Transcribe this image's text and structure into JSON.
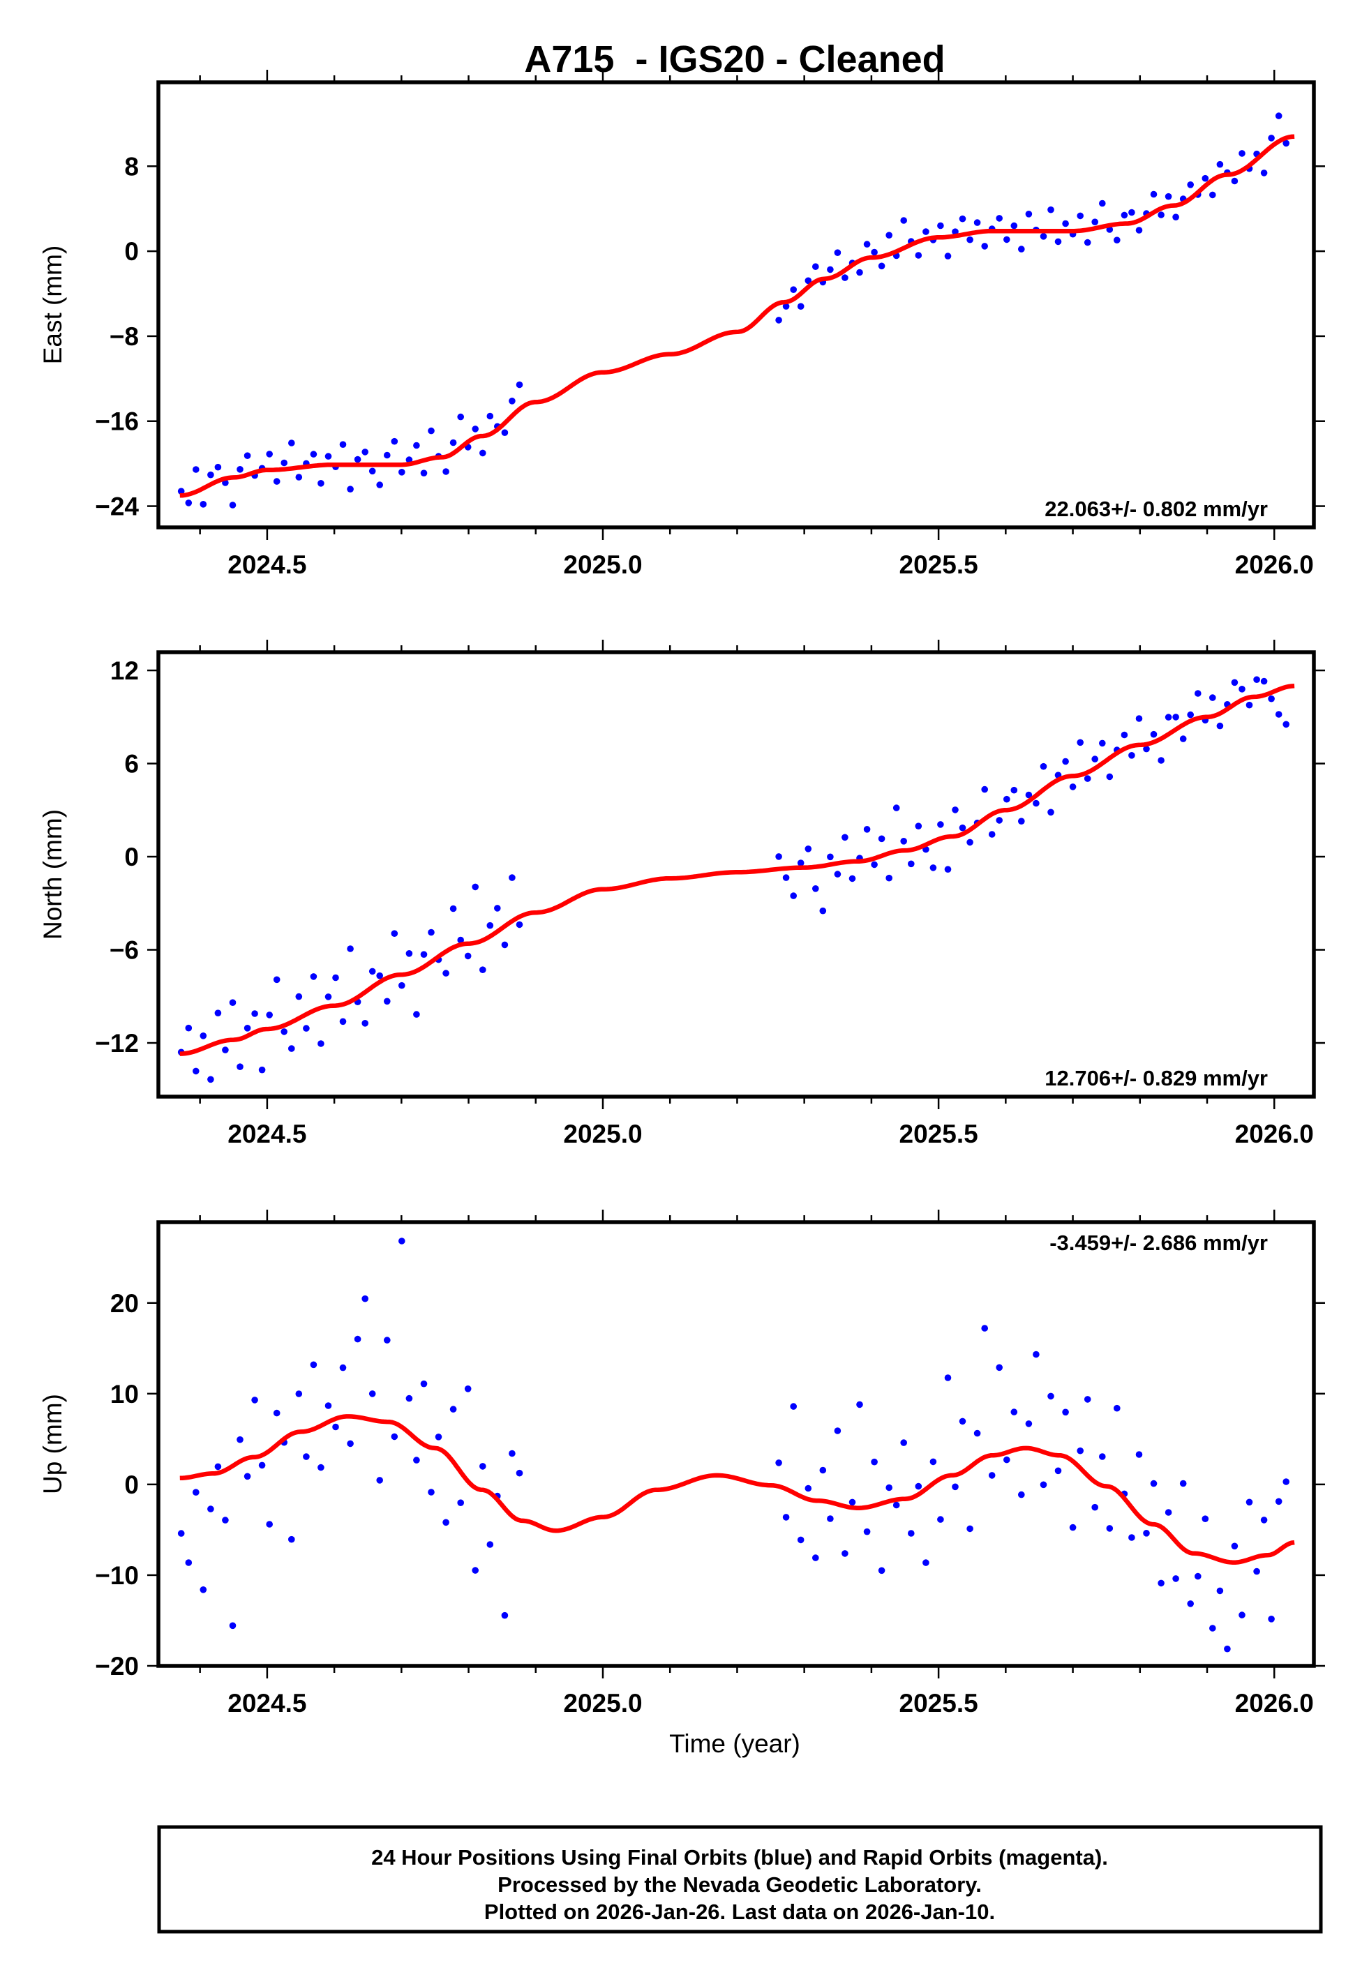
{
  "chart_data": {
    "type": "scatter",
    "title": "A715  - IGS20 - Cleaned",
    "xlabel": "Time (year)",
    "xlim": [
      2024.338,
      2026.059
    ],
    "x_ticks": [
      2024.5,
      2025.0,
      2025.5,
      2026.0
    ],
    "x_tick_labels": [
      "2024.5",
      "2025.0",
      "2025.5",
      "2026.0"
    ],
    "x_minor_step": 0.1,
    "grid": false,
    "point_color": "#0000ff",
    "fit_color": "#ff0000",
    "sampling": {
      "description": "Representative positions every 4 days; value = fit(t) + residual",
      "segments": [
        {
          "start": 2024.372,
          "step_days": 4
        },
        {
          "start": 2025.262,
          "step_days": 4
        }
      ]
    },
    "panels": [
      {
        "id": "east",
        "ylabel": "East (mm)",
        "ylim": [
          -26.0,
          15.9
        ],
        "y_ticks": [
          -24,
          -16,
          -8,
          0,
          8
        ],
        "y_tick_labels": [
          "−24",
          "−16",
          "−8",
          "0",
          "8"
        ],
        "rate_text": "22.063+/- 0.802 mm/yr",
        "rate_position": "bottom-right",
        "fit": [
          [
            2024.37,
            -23.0
          ],
          [
            2024.45,
            -21.3
          ],
          [
            2024.5,
            -20.6
          ],
          [
            2024.6,
            -20.1
          ],
          [
            2024.7,
            -20.1
          ],
          [
            2024.76,
            -19.4
          ],
          [
            2024.82,
            -17.4
          ],
          [
            2024.9,
            -14.2
          ],
          [
            2025.0,
            -11.4
          ],
          [
            2025.1,
            -9.7
          ],
          [
            2025.2,
            -7.6
          ],
          [
            2025.27,
            -4.8
          ],
          [
            2025.33,
            -2.6
          ],
          [
            2025.4,
            -0.6
          ],
          [
            2025.5,
            1.3
          ],
          [
            2025.58,
            1.9
          ],
          [
            2025.7,
            1.9
          ],
          [
            2025.78,
            2.6
          ],
          [
            2025.85,
            4.3
          ],
          [
            2025.93,
            7.2
          ],
          [
            2026.03,
            10.8
          ]
        ],
        "residuals": [
          [
            0.4,
            -0.8,
            2.1,
            -1.5,
            0.9,
            1.3,
            -0.4,
            -2.6,
            0.7,
            1.8,
            -0.3,
            0.2,
            1.5,
            -1.1,
            0.6,
            2.4,
            -0.9,
            0.3,
            1.1,
            -1.7,
            0.8,
            -0.2,
            1.9,
            -2.3,
            0.5,
            1.2,
            -0.6,
            -1.9,
            0.9,
            2.2,
            -0.7,
            0.4,
            1.6,
            -1.2,
            2.6,
            0.1,
            -1.4,
            1.0,
            2.9,
            -0.5,
            0.8,
            -1.6,
            1.7,
            0.3,
            -0.9,
            1.4,
            2.3
          ],
          [
            -1.6,
            -0.4,
            0.9,
            -1.2,
            0.6,
            1.4,
            -0.3,
            0.8,
            2.1,
            -0.7,
            0.2,
            -1.1,
            1.3,
            0.5,
            -0.9,
            1.8,
            -0.4,
            2.6,
            0.3,
            -1.3,
            0.7,
            -0.2,
            1.1,
            -1.8,
            0.4,
            1.5,
            -0.6,
            0.9,
            -1.4,
            0.2,
            1.2,
            -0.8,
            0.5,
            -1.7,
            1.6,
            0.1,
            -0.5,
            2.0,
            -1.0,
            0.7,
            -0.3,
            1.4,
            -1.2,
            0.6,
            2.2,
            -0.4,
            -1.5,
            0.8,
            1.0,
            -0.9,
            0.3,
            1.7,
            -0.6,
            0.9,
            -1.1,
            0.4,
            1.3,
            -0.2,
            0.7,
            -1.4,
            1.1,
            0.2,
            -0.7,
            1.6,
            -0.3,
            0.5,
            -1.9,
            0.8,
            2.4,
            -0.5
          ]
        ]
      },
      {
        "id": "north",
        "ylabel": "North (mm)",
        "ylim": [
          -15.46,
          13.17
        ],
        "y_ticks": [
          -12,
          -6,
          0,
          6,
          12
        ],
        "y_tick_labels": [
          "−12",
          "−6",
          "0",
          "6",
          "12"
        ],
        "rate_text": "12.706+/- 0.829 mm/yr",
        "rate_position": "bottom-right",
        "fit": [
          [
            2024.37,
            -12.7
          ],
          [
            2024.45,
            -11.8
          ],
          [
            2024.5,
            -11.1
          ],
          [
            2024.6,
            -9.6
          ],
          [
            2024.7,
            -7.6
          ],
          [
            2024.8,
            -5.6
          ],
          [
            2024.9,
            -3.6
          ],
          [
            2025.0,
            -2.1
          ],
          [
            2025.1,
            -1.4
          ],
          [
            2025.2,
            -1.0
          ],
          [
            2025.3,
            -0.7
          ],
          [
            2025.38,
            -0.3
          ],
          [
            2025.45,
            0.4
          ],
          [
            2025.52,
            1.3
          ],
          [
            2025.6,
            3.0
          ],
          [
            2025.7,
            5.2
          ],
          [
            2025.8,
            7.2
          ],
          [
            2025.9,
            9.0
          ],
          [
            2025.97,
            10.3
          ],
          [
            2026.03,
            11.0
          ]
        ],
        "residuals": [
          [
            0.1,
            1.6,
            -1.3,
            0.8,
            -2.2,
            1.9,
            -0.6,
            2.4,
            -1.8,
            0.5,
            1.2,
            -2.6,
            0.9,
            3.1,
            -0.4,
            -1.7,
            1.4,
            -0.9,
            2.2,
            -2.3,
            0.6,
            1.8,
            -1.1,
            3.4,
            -0.3,
            -2.0,
            1.0,
            0.4,
            -1.5,
            2.7,
            -0.7,
            1.3,
            -2.8,
            0.8,
            1.9,
            -0.2,
            -1.4,
            2.5,
            0.3,
            -0.8,
            3.6,
            -1.9,
            0.7,
            1.5,
            -1.2,
            2.8,
            -0.5
          ],
          [
            0.8,
            -0.6,
            -1.8,
            0.3,
            1.2,
            -1.4,
            -2.9,
            0.5,
            -0.7,
            1.6,
            -1.1,
            0.2,
            2.0,
            -0.4,
            1.1,
            -1.6,
            2.8,
            0.6,
            -0.9,
            1.4,
            -0.3,
            -1.7,
            0.9,
            -2.1,
            1.7,
            0.4,
            -0.8,
            0.1,
            1.9,
            -1.3,
            -0.6,
            0.7,
            1.2,
            -1.0,
            0.4,
            -0.5,
            1.5,
            -1.8,
            0.3,
            1.0,
            -0.7,
            2.1,
            -0.4,
            0.6,
            1.3,
            -1.2,
            0.2,
            0.9,
            -0.6,
            1.7,
            -0.3,
            0.5,
            -1.4,
            1.1,
            0.8,
            -0.9,
            0.4,
            1.6,
            -0.2,
            1.2,
            -0.8,
            0.3,
            1.4,
            0.7,
            -0.5,
            1.1,
            0.9,
            -0.4,
            -1.6,
            -2.4
          ]
        ]
      },
      {
        "id": "up",
        "ylabel": "Up (mm)",
        "ylim": [
          -20,
          28.9
        ],
        "y_ticks": [
          -20,
          -10,
          0,
          10,
          20
        ],
        "y_tick_labels": [
          "−20",
          "−10",
          "0",
          "10",
          "20"
        ],
        "rate_text": "-3.459+/- 2.686 mm/yr",
        "rate_position": "top-right",
        "fit": [
          [
            2024.37,
            0.7
          ],
          [
            2024.42,
            1.2
          ],
          [
            2024.48,
            3.0
          ],
          [
            2024.55,
            5.8
          ],
          [
            2024.62,
            7.5
          ],
          [
            2024.68,
            6.9
          ],
          [
            2024.75,
            4.0
          ],
          [
            2024.82,
            -0.6
          ],
          [
            2024.88,
            -4.0
          ],
          [
            2024.93,
            -5.1
          ],
          [
            2025.0,
            -3.6
          ],
          [
            2025.08,
            -0.6
          ],
          [
            2025.17,
            1.0
          ],
          [
            2025.25,
            -0.1
          ],
          [
            2025.32,
            -1.8
          ],
          [
            2025.38,
            -2.6
          ],
          [
            2025.45,
            -1.6
          ],
          [
            2025.52,
            1.0
          ],
          [
            2025.58,
            3.2
          ],
          [
            2025.63,
            4.0
          ],
          [
            2025.68,
            3.2
          ],
          [
            2025.75,
            -0.2
          ],
          [
            2025.82,
            -4.4
          ],
          [
            2025.88,
            -7.6
          ],
          [
            2025.94,
            -8.6
          ],
          [
            2025.99,
            -7.8
          ],
          [
            2026.03,
            -6.4
          ]
        ],
        "residuals": [
          [
            -6.1,
            -9.4,
            -1.8,
            -12.7,
            -3.9,
            0.7,
            -5.5,
            -17.6,
            2.4,
            -2.0,
            6.3,
            -1.1,
            -8.1,
            3.5,
            -0.4,
            -11.6,
            4.2,
            -2.8,
            7.1,
            -4.6,
            1.8,
            -0.9,
            5.4,
            -3.0,
            8.6,
            13.2,
            2.9,
            -6.5,
            9.0,
            -1.5,
            20.5,
            3.8,
            -2.3,
            6.7,
            -4.9,
            1.3,
            -7.6,
            5.8,
            -3.4,
            10.2,
            -9.1,
            2.6,
            -5.7,
            0.4,
            -11.8,
            6.9,
            5.2
          ],
          [
            2.6,
            -3.1,
            9.5,
            -4.8,
            1.2,
            -6.3,
            3.4,
            -1.8,
            8.1,
            -5.2,
            0.6,
            11.4,
            -2.7,
            4.8,
            -7.4,
            1.5,
            -0.6,
            6.2,
            -3.9,
            0.9,
            -8.1,
            2.4,
            -4.5,
            10.8,
            -1.3,
            5.6,
            -6.8,
            3.1,
            14.2,
            -2.2,
            9.6,
            -0.8,
            4.2,
            -5.1,
            2.7,
            10.5,
            -3.6,
            6.4,
            -1.7,
            4.9,
            -7.3,
            1.9,
            8.4,
            -2.8,
            3.2,
            -4.6,
            9.1,
            0.5,
            -3.3,
            6.8,
            -1.2,
            4.5,
            -6.2,
            2.3,
            -4.1,
            7.2,
            -5.6,
            -2.5,
            4.0,
            -7.8,
            -3.4,
            -9.6,
            1.8,
            -5.9,
            6.3,
            -1.6,
            3.9,
            -7.1,
            5.4,
            7.0
          ]
        ]
      }
    ],
    "footer_lines": [
      "24 Hour Positions Using Final Orbits (blue) and Rapid Orbits (magenta).",
      "Processed by the Nevada Geodetic Laboratory.",
      "Plotted on 2026-Jan-26. Last data on 2026-Jan-10."
    ]
  }
}
